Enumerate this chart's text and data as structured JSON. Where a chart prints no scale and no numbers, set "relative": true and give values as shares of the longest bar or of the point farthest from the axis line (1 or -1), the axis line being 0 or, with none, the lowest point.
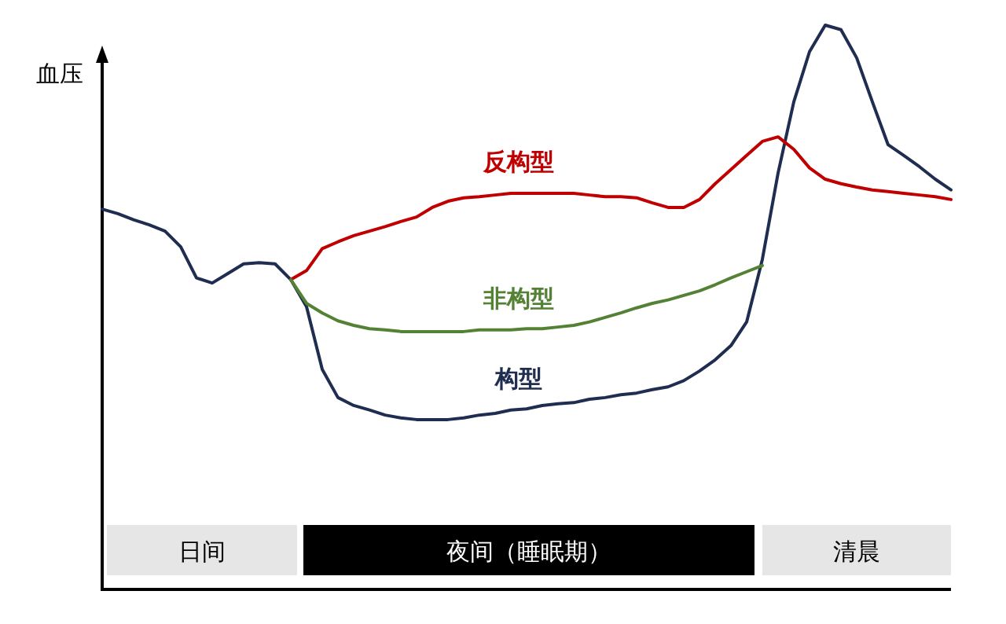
{
  "chart_data": {
    "type": "line",
    "ylabel": "血压",
    "relative": true,
    "legend": false,
    "categories": [
      null,
      null,
      null,
      null,
      null,
      null,
      null,
      null,
      null,
      null,
      null,
      null,
      null,
      null,
      null,
      null,
      null,
      null,
      null,
      null,
      null,
      null,
      null,
      null,
      null,
      null,
      null,
      null,
      null,
      null,
      null,
      null,
      null,
      null,
      null,
      null,
      null,
      null,
      null,
      null,
      null,
      null,
      null,
      null,
      null,
      null,
      null,
      null,
      null,
      null,
      null,
      null,
      null,
      null,
      null
    ],
    "series": [
      {
        "name": "构型",
        "color": "#1f2d50",
        "values": [
          0.674,
          0.666,
          0.655,
          0.646,
          0.635,
          0.607,
          0.552,
          0.543,
          0.56,
          0.577,
          0.579,
          0.577,
          0.549,
          0.501,
          0.39,
          0.34,
          0.326,
          0.318,
          0.309,
          0.304,
          0.301,
          0.301,
          0.301,
          0.304,
          0.309,
          0.312,
          0.318,
          0.32,
          0.326,
          0.329,
          0.331,
          0.337,
          0.34,
          0.345,
          0.348,
          0.354,
          0.359,
          0.37,
          0.387,
          0.407,
          0.432,
          0.474,
          0.585,
          0.738,
          0.864,
          0.953,
          1,
          0.992,
          0.942,
          0.864,
          0.788,
          0.769,
          0.749,
          0.727,
          0.708
        ]
      },
      {
        "name": "反构型",
        "color": "#c00000",
        "values": [
          null,
          null,
          null,
          null,
          null,
          null,
          null,
          null,
          null,
          null,
          null,
          null,
          0.549,
          0.565,
          0.604,
          0.616,
          0.627,
          0.635,
          0.643,
          0.652,
          0.66,
          0.677,
          0.688,
          0.694,
          0.696,
          0.699,
          0.702,
          0.702,
          0.702,
          0.702,
          0.702,
          0.699,
          0.696,
          0.696,
          0.694,
          0.685,
          0.677,
          0.677,
          0.691,
          0.719,
          0.744,
          0.769,
          0.794,
          0.802,
          0.78,
          0.747,
          0.727,
          0.719,
          0.713,
          0.708,
          0.705,
          0.702,
          0.699,
          0.696,
          0.691
        ]
      },
      {
        "name": "非构型",
        "color": "#548235",
        "values": [
          null,
          null,
          null,
          null,
          null,
          null,
          null,
          null,
          null,
          null,
          null,
          null,
          0.549,
          0.507,
          0.49,
          0.476,
          0.468,
          0.462,
          0.46,
          0.457,
          0.457,
          0.457,
          0.457,
          0.457,
          0.46,
          0.46,
          0.46,
          0.462,
          0.462,
          0.465,
          0.468,
          0.474,
          0.482,
          0.49,
          0.499,
          0.507,
          0.513,
          0.521,
          0.529,
          0.54,
          0.552,
          0.563,
          0.574,
          null,
          null,
          null,
          null,
          null,
          null,
          null,
          null,
          null,
          null,
          null,
          null
        ]
      }
    ],
    "annotations": [
      "日间",
      "夜间（睡眠期）",
      "清晨"
    ]
  }
}
